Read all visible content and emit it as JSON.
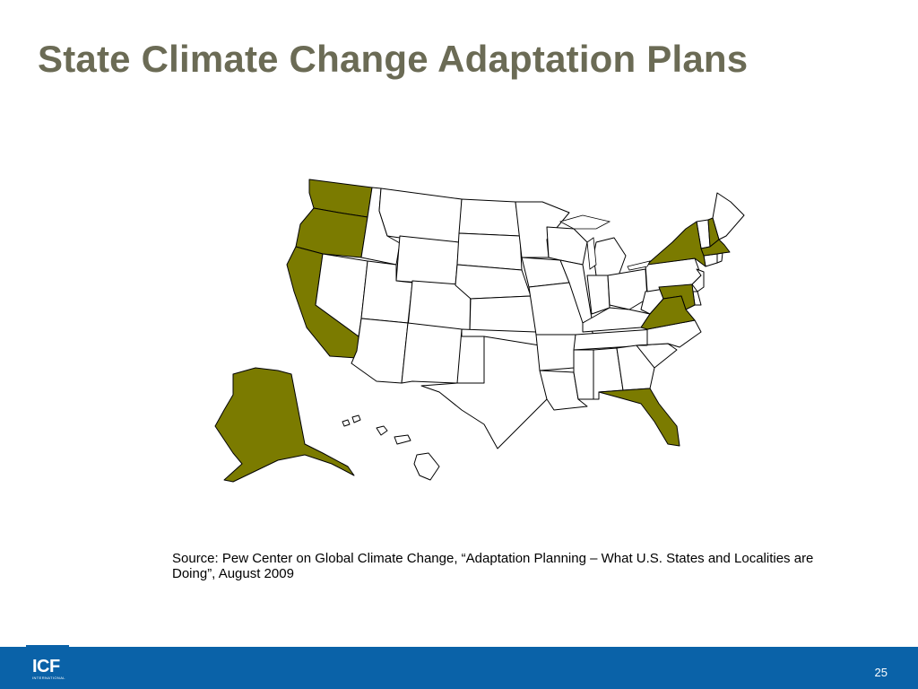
{
  "slide": {
    "title": "State Climate Change Adaptation Plans",
    "source": "Source: Pew Center on Global Climate Change, “Adaptation Planning – What U.S. States and Localities are Doing”, August 2009",
    "page_number": "25"
  },
  "footer": {
    "logo_text": "ICF",
    "logo_subtext": "INTERNATIONAL"
  },
  "map": {
    "highlight_color": "#7b7b00",
    "default_color": "#ffffff",
    "states_with_plans": [
      "Alaska",
      "Washington",
      "Oregon",
      "California",
      "New York",
      "New Hampshire",
      "Massachusetts",
      "Maryland",
      "Virginia",
      "Florida"
    ]
  }
}
